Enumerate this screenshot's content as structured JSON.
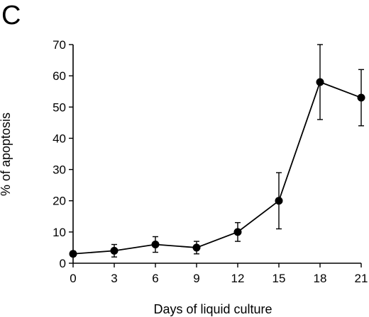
{
  "panel_label": "C",
  "chart_data": {
    "type": "line",
    "title": "",
    "xlabel": "Days of liquid culture",
    "ylabel": "% of apoptosis",
    "x": [
      0,
      3,
      6,
      9,
      12,
      15,
      18,
      21
    ],
    "series": [
      {
        "values": [
          3,
          4,
          6,
          5,
          10,
          20,
          58,
          53
        ],
        "errors": [
          0.8,
          2,
          2.5,
          2,
          3,
          9,
          12,
          9
        ]
      }
    ],
    "xticks": [
      "0",
      "3",
      "6",
      "9",
      "12",
      "15",
      "18",
      "21"
    ],
    "yticks": [
      "0",
      "10",
      "20",
      "30",
      "40",
      "50",
      "60",
      "70"
    ],
    "xlim": [
      0,
      21
    ],
    "ylim": [
      0,
      70
    ],
    "grid": false,
    "marker": "filled-circle",
    "color": "#000000"
  }
}
